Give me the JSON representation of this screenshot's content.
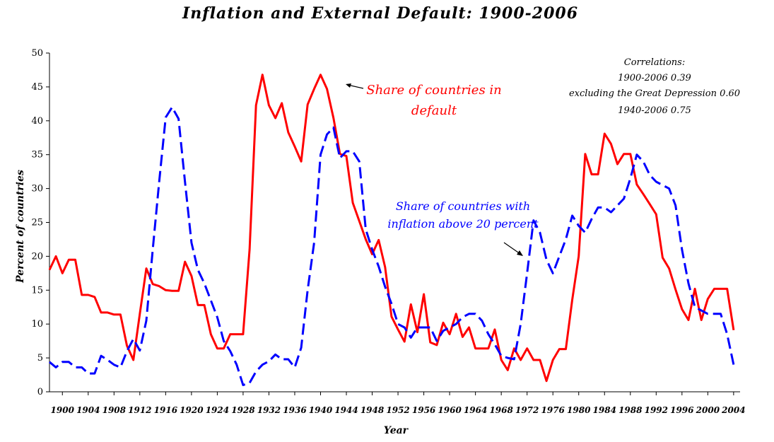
{
  "chart_data": {
    "type": "line",
    "title": "Inflation and External Default: 1900-2006",
    "xlabel": "Year",
    "ylabel": "Percent of countries",
    "xlim": [
      1898,
      2005
    ],
    "ylim": [
      0,
      50
    ],
    "y_ticks": [
      0,
      5,
      10,
      15,
      20,
      25,
      30,
      35,
      40,
      45,
      50
    ],
    "x_ticks": [
      1900,
      1904,
      1908,
      1912,
      1916,
      1920,
      1924,
      1928,
      1932,
      1936,
      1940,
      1944,
      1948,
      1952,
      1956,
      1960,
      1964,
      1968,
      1972,
      1976,
      1980,
      1984,
      1988,
      1992,
      1996,
      2000,
      2004
    ],
    "grid": false,
    "legend": "none",
    "series": [
      {
        "color": "#ff0000",
        "style": "solid",
        "x": [
          1898,
          1899,
          1900,
          1901,
          1902,
          1903,
          1904,
          1905,
          1906,
          1907,
          1908,
          1909,
          1910,
          1911,
          1912,
          1913,
          1914,
          1915,
          1916,
          1917,
          1918,
          1919,
          1920,
          1921,
          1922,
          1923,
          1924,
          1925,
          1926,
          1927,
          1928,
          1929,
          1930,
          1931,
          1932,
          1933,
          1934,
          1935,
          1936,
          1937,
          1938,
          1939,
          1940,
          1941,
          1942,
          1943,
          1944,
          1945,
          1946,
          1947,
          1948,
          1949,
          1950,
          1951,
          1952,
          1953,
          1954,
          1955,
          1956,
          1957,
          1958,
          1959,
          1960,
          1961,
          1962,
          1963,
          1964,
          1965,
          1966,
          1967,
          1968,
          1969,
          1970,
          1971,
          1972,
          1973,
          1974,
          1975,
          1976,
          1977,
          1978,
          1979,
          1980,
          1981,
          1982,
          1983,
          1984,
          1985,
          1986,
          1987,
          1988,
          1989,
          1990,
          1991,
          1992,
          1993,
          1994,
          1995,
          1996,
          1997,
          1998,
          1999,
          2000,
          2001,
          2002,
          2003,
          2004
        ],
        "y": [
          18,
          20,
          17.5,
          19.5,
          19.5,
          14.3,
          14.3,
          14,
          11.7,
          11.7,
          11.4,
          11.4,
          6.8,
          4.7,
          11.5,
          18.2,
          15.9,
          15.6,
          15,
          14.9,
          14.9,
          19.2,
          17.1,
          12.8,
          12.8,
          8.5,
          6.4,
          6.4,
          8.5,
          8.5,
          8.5,
          21,
          42.3,
          46.8,
          42.3,
          40.4,
          42.6,
          38.3,
          36.2,
          34,
          42.4,
          44.7,
          46.8,
          44.7,
          40.4,
          35.1,
          34.8,
          27.9,
          25.2,
          22.5,
          20.3,
          22.4,
          18.4,
          11.1,
          9.2,
          7.4,
          12.9,
          8.8,
          14.4,
          7.3,
          6.9,
          10.2,
          8.5,
          11.5,
          8.1,
          9.5,
          6.4,
          6.4,
          6.4,
          9.2,
          4.7,
          3.2,
          6.4,
          4.7,
          6.4,
          4.7,
          4.7,
          1.6,
          4.7,
          6.3,
          6.3,
          13.6,
          20,
          35.1,
          32.1,
          32.1,
          38.1,
          36.6,
          33.6,
          35.1,
          35.1,
          30.6,
          29.2,
          27.7,
          26.2,
          19.8,
          18.2,
          15.1,
          12.2,
          10.6,
          15.2,
          10.6,
          13.7,
          15.2,
          15.2,
          15.2,
          9.1
        ]
      },
      {
        "color": "#0000ff",
        "style": "dashed",
        "x": [
          1898,
          1899,
          1900,
          1901,
          1902,
          1903,
          1904,
          1905,
          1906,
          1907,
          1908,
          1909,
          1910,
          1911,
          1912,
          1913,
          1914,
          1915,
          1916,
          1917,
          1918,
          1919,
          1920,
          1921,
          1922,
          1923,
          1924,
          1925,
          1926,
          1927,
          1928,
          1929,
          1930,
          1931,
          1932,
          1933,
          1934,
          1935,
          1936,
          1937,
          1938,
          1939,
          1940,
          1941,
          1942,
          1943,
          1944,
          1945,
          1946,
          1947,
          1948,
          1949,
          1950,
          1951,
          1952,
          1953,
          1954,
          1955,
          1956,
          1957,
          1958,
          1959,
          1960,
          1961,
          1962,
          1963,
          1964,
          1965,
          1966,
          1967,
          1968,
          1969,
          1970,
          1971,
          1972,
          1973,
          1974,
          1975,
          1976,
          1977,
          1978,
          1979,
          1980,
          1981,
          1982,
          1983,
          1984,
          1985,
          1986,
          1987,
          1988,
          1989,
          1990,
          1991,
          1992,
          1993,
          1994,
          1995,
          1996,
          1997,
          1998,
          1999,
          2000,
          2001,
          2002,
          2003,
          2004
        ],
        "y": [
          4.4,
          3.6,
          4.4,
          4.4,
          3.6,
          3.6,
          2.7,
          2.7,
          5.3,
          4.7,
          4,
          3.6,
          6,
          7.8,
          6.1,
          10.5,
          21,
          31,
          40.5,
          42,
          40.3,
          31,
          22,
          18,
          16,
          13.5,
          11,
          7.5,
          6,
          4,
          1,
          1.3,
          3,
          4,
          4.5,
          5.5,
          4.8,
          4.8,
          3.6,
          6.5,
          15,
          22,
          35,
          38,
          39,
          34.5,
          35.5,
          35.5,
          34,
          24,
          21,
          18.5,
          15.5,
          13,
          10,
          9.5,
          8,
          9.5,
          9.5,
          9.5,
          7.5,
          9,
          9.5,
          10,
          11,
          11.5,
          11.5,
          10.5,
          8.5,
          7,
          5.3,
          5,
          4.8,
          10,
          17.5,
          25.3,
          23.5,
          19.5,
          17.5,
          20,
          22.5,
          26,
          24.5,
          23.5,
          25.5,
          27.2,
          27.2,
          26.5,
          27.5,
          28.5,
          31.5,
          35,
          34,
          32,
          31,
          30.5,
          30,
          27.5,
          21,
          16,
          12.5,
          12,
          11.5,
          11.5,
          11.5,
          8.5,
          4
        ]
      }
    ],
    "annotations": {
      "default_line1": "Share of countries in",
      "default_line2": "default",
      "inflation_line1": "Share of countries with",
      "inflation_line2": "inflation above 20 percent",
      "corr_title": "Correlations:",
      "corr_1": "1900-2006 0.39",
      "corr_2": "excluding the Great Depression 0.60",
      "corr_3": "1940-2006  0.75"
    }
  }
}
